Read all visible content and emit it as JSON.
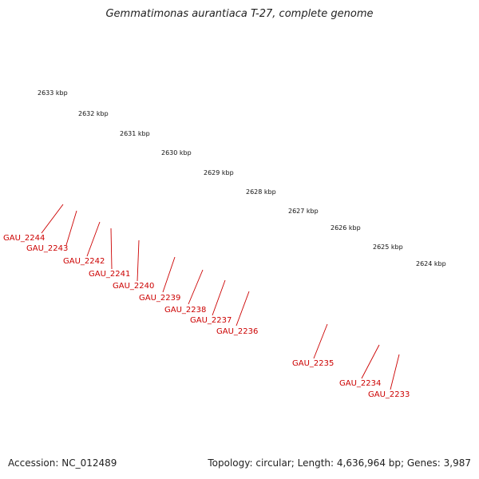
{
  "title": "Gemmatimonas aurantiaca T-27, complete genome",
  "footer": {
    "accession": "Accession: NC_012489",
    "summary": "Topology: circular; Length: 4,636,964 bp; Genes: 3,987"
  },
  "colors": {
    "gene_red": "#ff0000",
    "gene_red_dark": "#b40000",
    "backbone": "#808080",
    "tick_green": "#1a7a1a",
    "label_red": "#cc0000",
    "orange": "#ff8c00",
    "magenta": "#ff1493",
    "olive": "#6b8e23",
    "blue": "#0000ff"
  },
  "kbp_labels": [
    "2633 kbp",
    "2632 kbp",
    "2631 kbp",
    "2630 kbp",
    "2629 kbp",
    "2628 kbp",
    "2627 kbp",
    "2626 kbp",
    "2625 kbp",
    "2624 kbp"
  ],
  "gene_labels": [
    "GAU_2244",
    "GAU_2243",
    "GAU_2242",
    "GAU_2241",
    "GAU_2240",
    "GAU_2239",
    "GAU_2238",
    "GAU_2237",
    "GAU_2236",
    "GAU_2235",
    "GAU_2234",
    "GAU_2233"
  ]
}
